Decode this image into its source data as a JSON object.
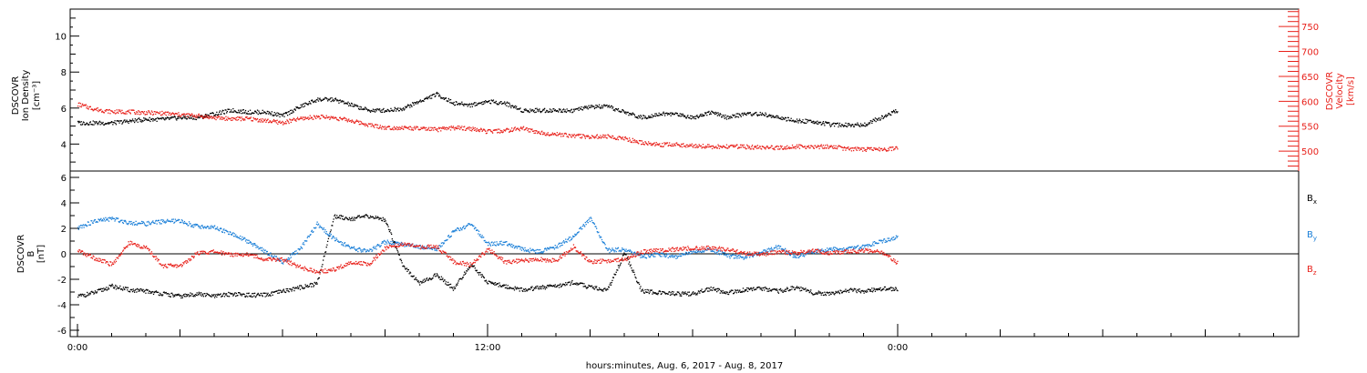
{
  "xlabel": "hours:minutes, Aug.  6, 2017 - Aug.  8, 2017",
  "x_tick_labels": [
    "0:00",
    "12:00",
    "0:00"
  ],
  "colors": {
    "black": "#000000",
    "red": "#e8201a",
    "blue": "#1a7fd8"
  },
  "chart_data": [
    {
      "type": "scatter",
      "panel": "top",
      "ylabel": [
        "DSCOVR",
        "Ion Density",
        "[cm⁻³]"
      ],
      "ylabel_right": [
        "DSCOVR",
        "Velocity",
        "[km/s]"
      ],
      "xlim": [
        0,
        36
      ],
      "ylim": [
        2.5,
        11.5
      ],
      "ylim_right": [
        460,
        785
      ],
      "yticks": [
        4,
        6,
        8,
        10
      ],
      "yticks_right": [
        500,
        550,
        600,
        650,
        700,
        750
      ],
      "grid": false,
      "series": [
        {
          "axis": "left",
          "color": "#000000",
          "x": [
            0,
            0.5,
            1,
            1.5,
            2,
            2.5,
            3,
            3.5,
            4,
            4.5,
            5,
            5.5,
            6,
            6.5,
            7,
            7.5,
            8,
            8.5,
            9,
            9.5,
            10,
            10.5,
            11,
            11.5,
            12,
            12.5,
            13,
            13.5,
            14,
            14.5,
            15,
            15.5,
            16,
            16.5,
            17,
            17.5,
            18,
            18.5,
            19,
            19.5,
            20,
            20.5,
            21,
            21.5,
            22,
            22.5,
            23,
            23.5,
            24
          ],
          "y": [
            5.2,
            5.2,
            5.2,
            5.3,
            5.4,
            5.4,
            5.5,
            5.5,
            5.7,
            5.9,
            5.8,
            5.8,
            5.6,
            6.1,
            6.5,
            6.5,
            6.2,
            5.9,
            5.9,
            6.0,
            6.4,
            6.8,
            6.3,
            6.2,
            6.4,
            6.3,
            5.9,
            5.9,
            5.9,
            5.9,
            6.1,
            6.1,
            5.8,
            5.5,
            5.7,
            5.7,
            5.5,
            5.8,
            5.5,
            5.7,
            5.7,
            5.5,
            5.3,
            5.3,
            5.1,
            5.1,
            5.1,
            5.5,
            5.9
          ]
        },
        {
          "axis": "right",
          "color": "#e8201a",
          "x": [
            0,
            0.5,
            1,
            1.5,
            2,
            2.5,
            3,
            3.5,
            4,
            4.5,
            5,
            5.5,
            6,
            6.5,
            7,
            7.5,
            8,
            8.5,
            9,
            9.5,
            10,
            10.5,
            11,
            11.5,
            12,
            12.5,
            13,
            13.5,
            14,
            14.5,
            15,
            15.5,
            16,
            16.5,
            17,
            17.5,
            18,
            18.5,
            19,
            19.5,
            20,
            20.5,
            21,
            21.5,
            22,
            22.5,
            23,
            23.5,
            24
          ],
          "y": [
            595,
            585,
            580,
            580,
            578,
            577,
            574,
            572,
            568,
            566,
            566,
            562,
            558,
            566,
            570,
            568,
            562,
            554,
            548,
            548,
            546,
            544,
            548,
            546,
            540,
            542,
            547,
            538,
            535,
            532,
            530,
            530,
            526,
            518,
            514,
            514,
            512,
            510,
            510,
            510,
            508,
            508,
            510,
            510,
            510,
            506,
            504,
            505,
            506
          ]
        }
      ]
    },
    {
      "type": "scatter",
      "panel": "bottom",
      "ylabel": [
        "DSCOVR",
        "B",
        "[nT]"
      ],
      "xlim": [
        0,
        36
      ],
      "ylim": [
        -6.5,
        6.5
      ],
      "yticks": [
        -6,
        -4,
        -2,
        0,
        2,
        4,
        6
      ],
      "grid": false,
      "zero_line": true,
      "legend": [
        {
          "label": "B",
          "sub": "x",
          "color": "#000000"
        },
        {
          "label": "B",
          "sub": "y",
          "color": "#1a7fd8"
        },
        {
          "label": "B",
          "sub": "z",
          "color": "#e8201a"
        }
      ],
      "series": [
        {
          "name": "Bx",
          "color": "#000000",
          "x": [
            0,
            0.5,
            1,
            1.5,
            2,
            2.5,
            3,
            3.5,
            4,
            4.5,
            5,
            5.5,
            6,
            6.5,
            7,
            7.5,
            8,
            8.5,
            9,
            9.5,
            10,
            10.5,
            11,
            11.5,
            12,
            12.5,
            13,
            13.5,
            14,
            14.5,
            15,
            15.5,
            16,
            16.5,
            17,
            17.5,
            18,
            18.5,
            19,
            19.5,
            20,
            20.5,
            21,
            21.5,
            22,
            22.5,
            23,
            23.5,
            24
          ],
          "y": [
            -3.3,
            -3.0,
            -2.5,
            -2.8,
            -2.9,
            -3.1,
            -3.3,
            -3.1,
            -3.3,
            -3.1,
            -3.2,
            -3.2,
            -2.9,
            -2.6,
            -2.3,
            3.0,
            2.8,
            3.0,
            2.7,
            -0.8,
            -2.3,
            -1.6,
            -2.7,
            -0.8,
            -2.2,
            -2.5,
            -2.8,
            -2.6,
            -2.5,
            -2.2,
            -2.6,
            -2.8,
            0.1,
            -2.9,
            -3.0,
            -3.1,
            -3.1,
            -2.7,
            -3.0,
            -2.8,
            -2.7,
            -2.9,
            -2.6,
            -3.0,
            -3.1,
            -2.8,
            -2.9,
            -2.7,
            -2.7
          ]
        },
        {
          "name": "By",
          "color": "#1a7fd8",
          "x": [
            0,
            0.5,
            1,
            1.5,
            2,
            2.5,
            3,
            3.5,
            4,
            4.5,
            5,
            5.5,
            6,
            6.5,
            7,
            7.5,
            8,
            8.5,
            9,
            9.5,
            10,
            10.5,
            11,
            11.5,
            12,
            12.5,
            13,
            13.5,
            14,
            14.5,
            15,
            15.5,
            16,
            16.5,
            17,
            17.5,
            18,
            18.5,
            19,
            19.5,
            20,
            20.5,
            21,
            21.5,
            22,
            22.5,
            23,
            23.5,
            24
          ],
          "y": [
            2.1,
            2.6,
            2.8,
            2.5,
            2.4,
            2.6,
            2.6,
            2.2,
            2.1,
            1.6,
            1.0,
            0.2,
            -0.6,
            0.4,
            2.4,
            1.2,
            0.5,
            0.2,
            1.0,
            0.8,
            0.6,
            0.4,
            1.8,
            2.4,
            0.8,
            0.9,
            0.4,
            0.2,
            0.6,
            1.4,
            2.8,
            0.3,
            0.4,
            -0.2,
            0.0,
            -0.2,
            0.2,
            0.4,
            -0.1,
            -0.3,
            0.2,
            0.6,
            -0.2,
            0.2,
            0.4,
            0.4,
            0.6,
            1.0,
            1.4
          ]
        },
        {
          "name": "Bz",
          "color": "#e8201a",
          "x": [
            0,
            0.5,
            1,
            1.5,
            2,
            2.5,
            3,
            3.5,
            4,
            4.5,
            5,
            5.5,
            6,
            6.5,
            7,
            7.5,
            8,
            8.5,
            9,
            9.5,
            10,
            10.5,
            11,
            11.5,
            12,
            12.5,
            13,
            13.5,
            14,
            14.5,
            15,
            15.5,
            16,
            16.5,
            17,
            17.5,
            18,
            18.5,
            19,
            19.5,
            20,
            20.5,
            21,
            21.5,
            22,
            22.5,
            23,
            23.5,
            24
          ],
          "y": [
            0.3,
            -0.3,
            -0.8,
            0.9,
            0.5,
            -0.9,
            -0.9,
            0.1,
            0.2,
            0.0,
            0.0,
            -0.4,
            -0.4,
            -1.0,
            -1.4,
            -1.2,
            -0.6,
            -0.8,
            0.5,
            0.8,
            0.6,
            0.6,
            -0.6,
            -0.8,
            0.4,
            -0.6,
            -0.5,
            -0.4,
            -0.5,
            0.6,
            -0.6,
            -0.5,
            -0.4,
            0.2,
            0.3,
            0.4,
            0.5,
            0.5,
            0.4,
            0.1,
            0.0,
            0.2,
            0.1,
            0.3,
            0.1,
            0.2,
            0.3,
            0.2,
            -0.7
          ]
        }
      ]
    }
  ]
}
